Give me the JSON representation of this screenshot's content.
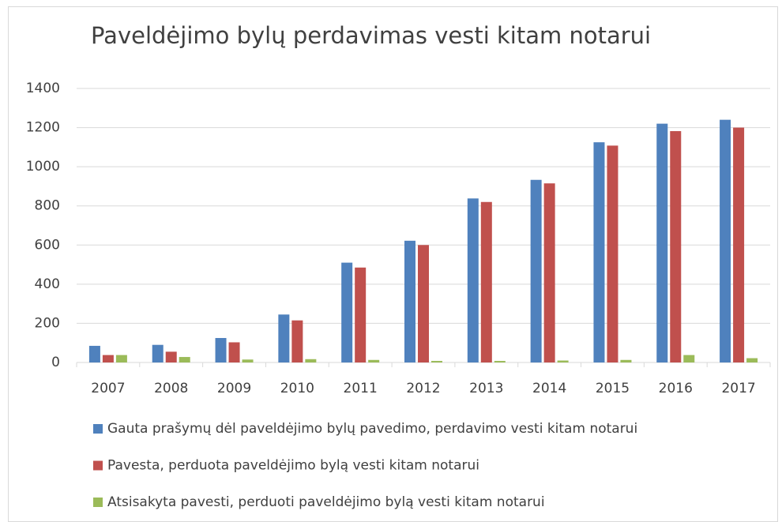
{
  "chart_data": {
    "type": "bar",
    "title": "Paveldėjimo bylų perdavimas vesti kitam notarui",
    "categories": [
      "2007",
      "2008",
      "2009",
      "2010",
      "2011",
      "2012",
      "2013",
      "2014",
      "2015",
      "2016",
      "2017"
    ],
    "series": [
      {
        "name": "Gauta prašymų dėl paveldėjimo bylų pavedimo, perdavimo vesti kitam notarui",
        "color": "#4f81bd",
        "values": [
          85,
          90,
          125,
          245,
          510,
          622,
          838,
          933,
          1125,
          1220,
          1240
        ]
      },
      {
        "name": "Pavesta, perduota paveldėjimo bylą vesti kitam notarui",
        "color": "#c0504d",
        "values": [
          38,
          55,
          103,
          215,
          485,
          600,
          820,
          915,
          1108,
          1182,
          1200
        ]
      },
      {
        "name": "Atsisakyta pavesti, perduoti paveldėjimo bylą vesti kitam notarui",
        "color": "#9bbb59",
        "values": [
          38,
          28,
          15,
          17,
          13,
          8,
          8,
          10,
          13,
          38,
          22
        ]
      }
    ],
    "ylim": [
      0,
      1400
    ],
    "yticks": [
      0,
      200,
      400,
      600,
      800,
      1000,
      1200,
      1400
    ],
    "grid": true,
    "legend": "bottom"
  }
}
